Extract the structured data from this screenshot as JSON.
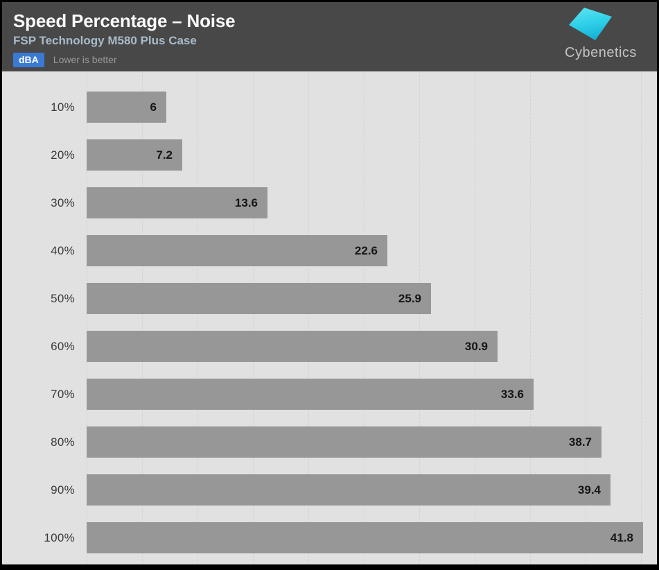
{
  "header": {
    "title": "Speed Percentage – Noise",
    "subtitle": "FSP Technology M580 Plus Case",
    "unit_badge": "dBA",
    "note": "Lower is better",
    "logo_text": "Cybenetics"
  },
  "colors": {
    "header_bg": "#484848",
    "title": "#fafafa",
    "subtitle": "#a8bbca",
    "badge_bg": "#3a7ad4",
    "badge_text": "#ffffff",
    "note_text": "#999999",
    "plot_bg": "#e1e1e1",
    "bar": "#979797",
    "gridline": "#d2d2d2",
    "category_label": "#3a3a3a",
    "value_label": "#151515",
    "logo_cyan_top": "#5fe5f2",
    "logo_cyan_bottom": "#18b4d8",
    "logo_text_color": "#c3c3c3",
    "frame_border": "#000000"
  },
  "chart_data": {
    "type": "bar",
    "orientation": "horizontal",
    "title": "Speed Percentage – Noise",
    "subtitle": "FSP Technology M580 Plus Case",
    "unit": "dBA",
    "note": "Lower is better",
    "categories": [
      "10%",
      "20%",
      "30%",
      "40%",
      "50%",
      "60%",
      "70%",
      "80%",
      "90%",
      "100%"
    ],
    "values": [
      6,
      7.2,
      13.6,
      22.6,
      25.9,
      30.9,
      33.6,
      38.7,
      39.4,
      41.8
    ],
    "xlabel": "",
    "ylabel": "",
    "xlim": [
      0,
      42.2
    ],
    "grid": "vertical-dashed",
    "gridline_count": 11,
    "legend": "none",
    "value_label_position": "inside-end",
    "axis_tick_labels_shown": false
  }
}
